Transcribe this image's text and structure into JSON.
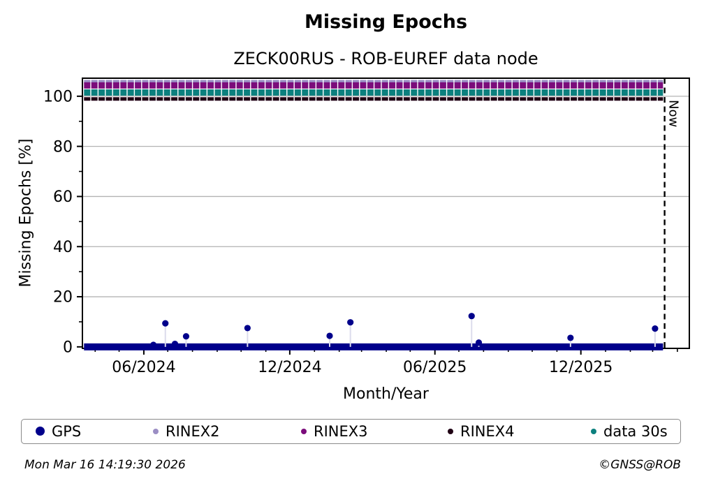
{
  "title": "Missing Epochs",
  "subtitle": "ZECK00RUS - ROB-EUREF data node",
  "footer": {
    "timestamp": "Mon Mar 16 14:19:30 2026",
    "credit": "©GNSS@ROB"
  },
  "colors": {
    "gps": "#00008b",
    "rinex2": "#9b8ec4",
    "rinex3": "#7b0c7b",
    "rinex4": "#200114",
    "data30s": "#0c807e",
    "grid": "#b3b3b3",
    "frame": "#000000",
    "stem": "#dcdcec"
  },
  "legend": {
    "items": [
      {
        "label": "GPS",
        "color": "#00008b",
        "dot_size": 13
      },
      {
        "label": "RINEX2",
        "color": "#9b8ec4",
        "dot_size": 8
      },
      {
        "label": "RINEX3",
        "color": "#7b0c7b",
        "dot_size": 8
      },
      {
        "label": "RINEX4",
        "color": "#200114",
        "dot_size": 8
      },
      {
        "label": "data 30s",
        "color": "#0c807e",
        "dot_size": 8
      }
    ]
  },
  "chart_data": {
    "type": "scatter",
    "title": "Missing Epochs",
    "subtitle": "ZECK00RUS - ROB-EUREF data node",
    "xlabel": "Month/Year",
    "ylabel": "Missing Epochs [%]",
    "x_domain": [
      "2024-03-16",
      "2026-04-16"
    ],
    "ylim": [
      -0.6,
      107.2
    ],
    "grid": true,
    "legend_position": "bottom",
    "x_major_ticks": [
      {
        "label": "06/2024"
      },
      {
        "label": "12/2024"
      },
      {
        "label": "06/2025"
      },
      {
        "label": "12/2025"
      }
    ],
    "x_minor_tick_interval": "1 month",
    "y_major_ticks": [
      0,
      20,
      40,
      60,
      80,
      100
    ],
    "y_minor_ticks": [
      10,
      30,
      50,
      70,
      90
    ],
    "now_line": {
      "date": "2026-03-16",
      "label": "Now"
    },
    "series": [
      {
        "name": "GPS",
        "color": "#00008b",
        "kind": "scatter-with-baseline",
        "baseline": {
          "from": "2024-03-18",
          "to": "2026-03-14",
          "value": 0,
          "thickness": 10
        },
        "points": [
          {
            "date": "2024-06-13",
            "value": 0.8
          },
          {
            "date": "2024-06-28",
            "value": 9.4
          },
          {
            "date": "2024-07-10",
            "value": 1.2
          },
          {
            "date": "2024-07-24",
            "value": 4.2
          },
          {
            "date": "2024-10-09",
            "value": 7.5
          },
          {
            "date": "2025-01-20",
            "value": 4.4
          },
          {
            "date": "2025-02-15",
            "value": 9.8
          },
          {
            "date": "2025-07-17",
            "value": 12.3
          },
          {
            "date": "2025-07-26",
            "value": 1.7
          },
          {
            "date": "2025-11-18",
            "value": 3.6
          },
          {
            "date": "2026-03-04",
            "value": 7.3
          }
        ]
      },
      {
        "name": "RINEX2",
        "color": "#9b8ec4",
        "kind": "availability-row",
        "row_value": 105.8,
        "row_thickness": 5,
        "from": "2024-03-18",
        "to": "2026-03-14"
      },
      {
        "name": "RINEX3",
        "color": "#7b0c7b",
        "kind": "availability-row",
        "row_value": 104.3,
        "row_thickness": 9,
        "from": "2024-03-18",
        "to": "2026-03-14"
      },
      {
        "name": "data 30s",
        "color": "#0c807e",
        "kind": "availability-row",
        "row_value": 101.5,
        "row_thickness": 9,
        "from": "2024-03-18",
        "to": "2026-03-14"
      },
      {
        "name": "RINEX4",
        "color": "#200114",
        "kind": "availability-row",
        "row_value": 98.9,
        "row_thickness": 5,
        "from": "2024-03-18",
        "to": "2026-03-14"
      }
    ]
  }
}
